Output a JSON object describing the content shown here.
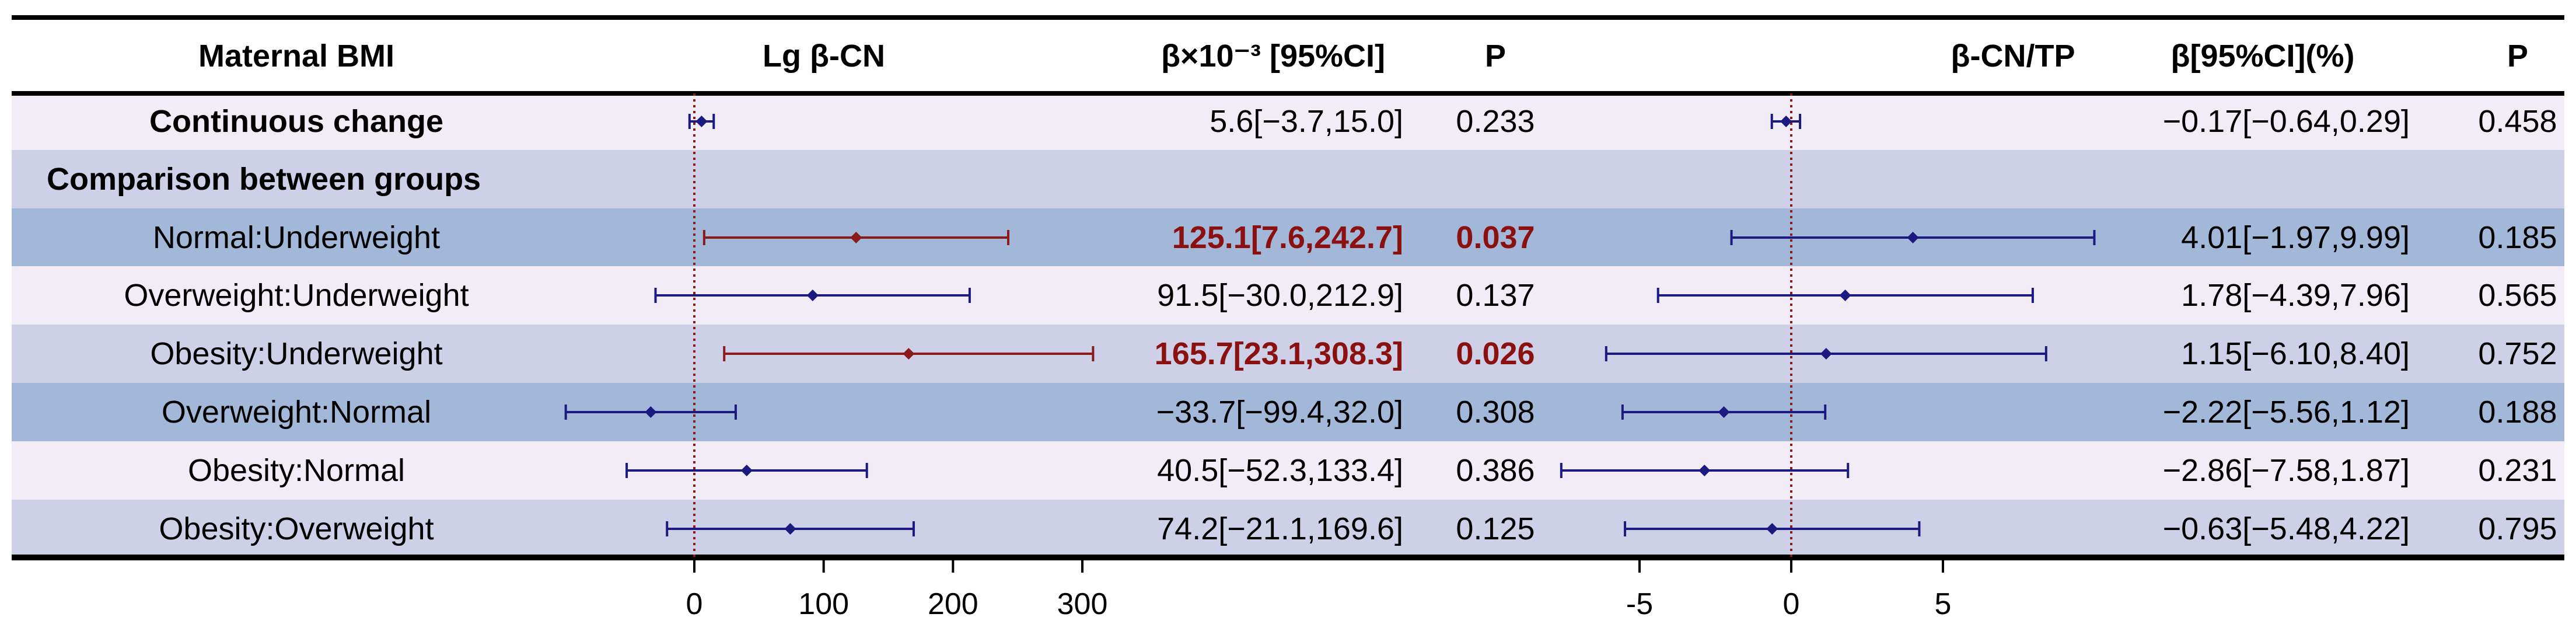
{
  "chart_data": {
    "type": "forest",
    "columns": {
      "bmi": "Maternal BMI",
      "plot1": "Lg β-CN",
      "est1": "β×10⁻³ [95%CI]",
      "p1": "P",
      "plot2": "β-CN/TP",
      "est2": "β[95%CI](%)",
      "p2": "P"
    },
    "section_label": "Comparison between groups",
    "rows": [
      {
        "label": "Continuous change",
        "bold": true,
        "band": "#f1ecf5",
        "lg": {
          "beta": 5.6,
          "lo": -3.7,
          "hi": 15.0,
          "text": "5.6[−3.7,15.0]",
          "p": "0.233",
          "sig": false
        },
        "ratio": {
          "beta": -0.17,
          "lo": -0.64,
          "hi": 0.29,
          "text": "−0.17[−0.64,0.29]",
          "p": "0.458",
          "sig": false
        }
      },
      {
        "label": "Normal:Underweight",
        "bold": false,
        "band": "#a3b7d8",
        "lg": {
          "beta": 125.1,
          "lo": 7.6,
          "hi": 242.7,
          "text": "125.1[7.6,242.7]",
          "p": "0.037",
          "sig": true
        },
        "ratio": {
          "beta": 4.01,
          "lo": -1.97,
          "hi": 9.99,
          "text": "4.01[−1.97,9.99]",
          "p": "0.185",
          "sig": false
        }
      },
      {
        "label": "Overweight:Underweight",
        "bold": false,
        "band": "#f1ecf5",
        "lg": {
          "beta": 91.5,
          "lo": -30.0,
          "hi": 212.9,
          "text": "91.5[−30.0,212.9]",
          "p": "0.137",
          "sig": false
        },
        "ratio": {
          "beta": 1.78,
          "lo": -4.39,
          "hi": 7.96,
          "text": "1.78[−4.39,7.96]",
          "p": "0.565",
          "sig": false
        }
      },
      {
        "label": "Obesity:Underweight",
        "bold": false,
        "band": "#cdd0e7",
        "lg": {
          "beta": 165.7,
          "lo": 23.1,
          "hi": 308.3,
          "text": "165.7[23.1,308.3]",
          "p": "0.026",
          "sig": true
        },
        "ratio": {
          "beta": 1.15,
          "lo": -6.1,
          "hi": 8.4,
          "text": "1.15[−6.10,8.40]",
          "p": "0.752",
          "sig": false
        }
      },
      {
        "label": "Overweight:Normal",
        "bold": false,
        "band": "#a3b7d8",
        "lg": {
          "beta": -33.7,
          "lo": -99.4,
          "hi": 32.0,
          "text": "−33.7[−99.4,32.0]",
          "p": "0.308",
          "sig": false
        },
        "ratio": {
          "beta": -2.22,
          "lo": -5.56,
          "hi": 1.12,
          "text": "−2.22[−5.56,1.12]",
          "p": "0.188",
          "sig": false
        }
      },
      {
        "label": "Obesity:Normal",
        "bold": false,
        "band": "#f1ecf5",
        "lg": {
          "beta": 40.5,
          "lo": -52.3,
          "hi": 133.4,
          "text": "40.5[−52.3,133.4]",
          "p": "0.386",
          "sig": false
        },
        "ratio": {
          "beta": -2.86,
          "lo": -7.58,
          "hi": 1.87,
          "text": "−2.86[−7.58,1.87]",
          "p": "0.231",
          "sig": false
        }
      },
      {
        "label": "Obesity:Overweight",
        "bold": false,
        "band": "#cdd0e7",
        "lg": {
          "beta": 74.2,
          "lo": -21.1,
          "hi": 169.6,
          "text": "74.2[−21.1,169.6]",
          "p": "0.125",
          "sig": false
        },
        "ratio": {
          "beta": -0.63,
          "lo": -5.48,
          "hi": 4.22,
          "text": "−0.63[−5.48,4.22]",
          "p": "0.795",
          "sig": false
        }
      }
    ],
    "axes": {
      "lg": {
        "ticks": [
          0,
          100,
          200,
          300
        ],
        "tick_labels": [
          "0",
          "100",
          "200",
          "300"
        ]
      },
      "ratio": {
        "ticks": [
          -5,
          0,
          5
        ],
        "tick_labels": [
          "-5",
          "0",
          "5"
        ]
      }
    },
    "colors": {
      "ns": "#1a1a80",
      "sig": "#8b1a1a",
      "sig_text": "#8b1010",
      "ref_line": "#8b1a1a",
      "section_band": "#cdd0e7",
      "header_rule": "#000000"
    }
  }
}
